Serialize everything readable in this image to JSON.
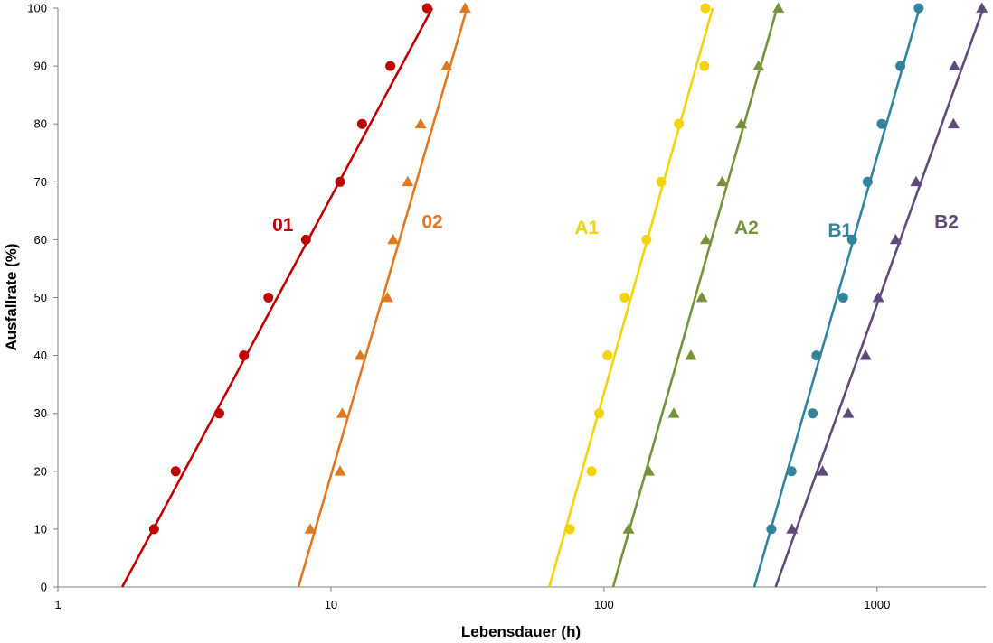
{
  "chart_data": {
    "type": "scatter",
    "xlabel": "Lebensdauer (h)",
    "ylabel": "Ausfallrate (%)",
    "xscale": "log",
    "xlim": [
      1,
      2500
    ],
    "ylim": [
      0,
      100
    ],
    "x_ticks": [
      1,
      10,
      100,
      1000
    ],
    "x_tick_labels": [
      "1",
      "10",
      "100",
      "1000"
    ],
    "y_ticks": [
      0,
      10,
      20,
      30,
      40,
      50,
      60,
      70,
      80,
      90,
      100
    ],
    "y_tick_labels": [
      "0",
      "10",
      "20",
      "30",
      "40",
      "50",
      "60",
      "70",
      "80",
      "90",
      "100"
    ],
    "grid": false,
    "legend": "none",
    "series": [
      {
        "name": "01",
        "color": "#c00000",
        "marker": "circle",
        "label_at": [
          6.1,
          61.5
        ],
        "points": [
          [
            2.25,
            10
          ],
          [
            2.7,
            20
          ],
          [
            3.9,
            30
          ],
          [
            4.8,
            40
          ],
          [
            5.9,
            50
          ],
          [
            8.1,
            60
          ],
          [
            10.8,
            70
          ],
          [
            13.0,
            80
          ],
          [
            16.5,
            90
          ],
          [
            22.5,
            100
          ]
        ],
        "fit": [
          [
            1.72,
            0
          ],
          [
            23.5,
            100
          ]
        ]
      },
      {
        "name": "02",
        "color": "#e07820",
        "marker": "triangle",
        "label_at": [
          21.5,
          62.0
        ],
        "points": [
          [
            8.4,
            10
          ],
          [
            10.8,
            20
          ],
          [
            11.0,
            30
          ],
          [
            12.8,
            40
          ],
          [
            16.1,
            50
          ],
          [
            16.9,
            60
          ],
          [
            19.1,
            70
          ],
          [
            21.3,
            80
          ],
          [
            26.5,
            90
          ],
          [
            31.0,
            100
          ]
        ],
        "fit": [
          [
            7.6,
            0
          ],
          [
            31.5,
            100
          ]
        ]
      },
      {
        "name": "A1",
        "color": "#f5d20a",
        "marker": "circle",
        "label_at": [
          78,
          61.0
        ],
        "points": [
          [
            75,
            10
          ],
          [
            90,
            20
          ],
          [
            96,
            30
          ],
          [
            103,
            40
          ],
          [
            119,
            50
          ],
          [
            143,
            60
          ],
          [
            162,
            70
          ],
          [
            188,
            80
          ],
          [
            233,
            90
          ],
          [
            235,
            100
          ]
        ],
        "fit": [
          [
            63,
            0
          ],
          [
            250,
            100
          ]
        ]
      },
      {
        "name": "A2",
        "color": "#76933c",
        "marker": "triangle",
        "label_at": [
          300,
          61.0
        ],
        "points": [
          [
            123,
            10
          ],
          [
            146,
            20
          ],
          [
            180,
            30
          ],
          [
            208,
            40
          ],
          [
            228,
            50
          ],
          [
            236,
            60
          ],
          [
            271,
            70
          ],
          [
            318,
            80
          ],
          [
            368,
            90
          ],
          [
            435,
            100
          ]
        ],
        "fit": [
          [
            108,
            0
          ],
          [
            430,
            100
          ]
        ]
      },
      {
        "name": "B1",
        "color": "#31849b",
        "marker": "circle",
        "label_at": [
          660,
          60.5
        ],
        "points": [
          [
            410,
            10
          ],
          [
            486,
            20
          ],
          [
            581,
            30
          ],
          [
            600,
            40
          ],
          [
            751,
            50
          ],
          [
            810,
            60
          ],
          [
            923,
            70
          ],
          [
            1040,
            80
          ],
          [
            1217,
            90
          ],
          [
            1420,
            100
          ]
        ],
        "fit": [
          [
            355,
            0
          ],
          [
            1430,
            100
          ]
        ]
      },
      {
        "name": "B2",
        "color": "#604a7b",
        "marker": "triangle",
        "label_at": [
          1620,
          62.0
        ],
        "points": [
          [
            488,
            10
          ],
          [
            631,
            20
          ],
          [
            784,
            30
          ],
          [
            908,
            40
          ],
          [
            1010,
            50
          ],
          [
            1170,
            60
          ],
          [
            1390,
            70
          ],
          [
            1905,
            80
          ],
          [
            1920,
            90
          ],
          [
            2420,
            100
          ]
        ],
        "fit": [
          [
            425,
            0
          ],
          [
            2450,
            100
          ]
        ]
      }
    ]
  }
}
